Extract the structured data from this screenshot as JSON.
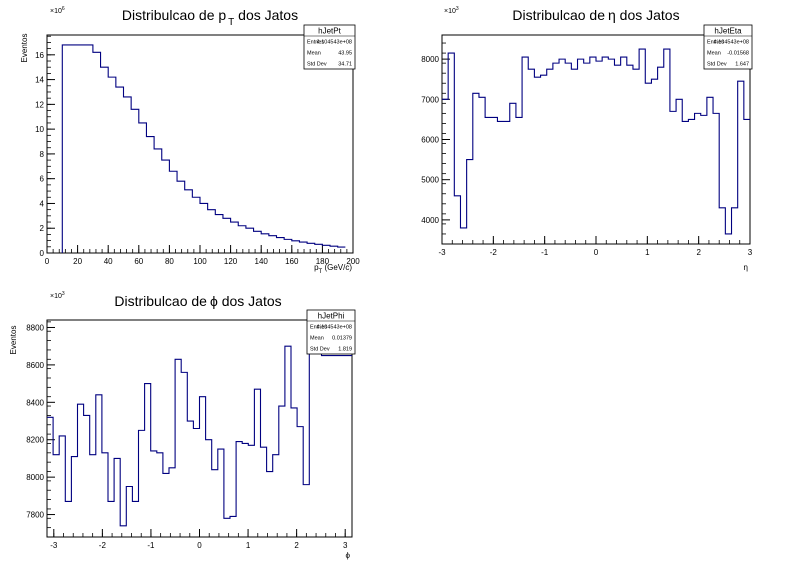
{
  "chart_data": [
    {
      "type": "histogram",
      "title_prefix": "Distribulcao de p",
      "title_sub": "T",
      "title_suffix": " dos Jatos",
      "xlabel_main": "p",
      "xlabel_sub": "T",
      "xlabel_suffix": " (GeV/c)",
      "ylabel": "Eventos",
      "multiplier": "×10",
      "multiplier_exp": "6",
      "xlim": [
        0,
        200
      ],
      "ylim": [
        0,
        17.6
      ],
      "xticks": [
        0,
        20,
        40,
        60,
        80,
        100,
        120,
        140,
        160,
        180,
        200
      ],
      "yticks": [
        0,
        2,
        4,
        6,
        8,
        10,
        12,
        14,
        16
      ],
      "bin_width": 5,
      "bin_start": 10,
      "values": [
        16.8,
        16.8,
        16.8,
        16.8,
        16.2,
        15.0,
        14.2,
        13.4,
        12.6,
        11.6,
        10.5,
        9.4,
        8.4,
        7.5,
        6.6,
        5.8,
        5.1,
        4.5,
        4.0,
        3.5,
        3.1,
        2.8,
        2.5,
        2.2,
        2.0,
        1.75,
        1.55,
        1.4,
        1.25,
        1.1,
        0.98,
        0.88,
        0.78,
        0.7,
        0.62,
        0.55,
        0.48
      ],
      "stats": {
        "name": "hJetPt",
        "rows": [
          [
            "Entries",
            "4.104543e+08"
          ],
          [
            "Mean",
            "43.95"
          ],
          [
            "Std Dev",
            "34.71"
          ]
        ]
      }
    },
    {
      "type": "histogram",
      "title_prefix": "Distribulcao de",
      "title_sub": "",
      "title_symbol": "η",
      "title_suffix": " dos Jatos",
      "xlabel_main": "η",
      "xlabel_sub": "",
      "xlabel_suffix": "",
      "ylabel": "",
      "multiplier": "×10",
      "multiplier_exp": "3",
      "xlim": [
        -3,
        3
      ],
      "ylim": [
        3400,
        8600
      ],
      "xticks": [
        -3,
        -2,
        -1,
        0,
        1,
        2,
        3
      ],
      "yticks": [
        4000,
        5000,
        6000,
        7000,
        8000
      ],
      "bin_width": 0.12,
      "bin_start": -3,
      "values": [
        7000,
        8150,
        4600,
        3800,
        5500,
        7150,
        7050,
        6550,
        6550,
        6450,
        6450,
        6900,
        6550,
        8050,
        7750,
        7550,
        7600,
        7750,
        7900,
        8000,
        7900,
        7750,
        8000,
        7900,
        8050,
        7950,
        8050,
        8000,
        7850,
        8050,
        7850,
        7750,
        8250,
        7400,
        7500,
        7800,
        8250,
        6700,
        7000,
        6450,
        6500,
        6650,
        6600,
        7050,
        6650,
        4300,
        3650,
        4300,
        7450,
        6500
      ],
      "stats": {
        "name": "hJetEta",
        "rows": [
          [
            "Entries",
            "4.104543e+08"
          ],
          [
            "Mean",
            "-0.01568"
          ],
          [
            "Std Dev",
            "1.647"
          ]
        ]
      }
    },
    {
      "type": "histogram",
      "title_prefix": "Distribulcao de",
      "title_sub": "",
      "title_symbol": "ϕ",
      "title_suffix": " dos Jatos",
      "xlabel_main": "ϕ",
      "xlabel_sub": "",
      "xlabel_suffix": "",
      "ylabel": "Eventos",
      "multiplier": "×10",
      "multiplier_exp": "3",
      "xlim": [
        -3.14,
        3.14
      ],
      "ylim": [
        7680,
        8840
      ],
      "xticks": [
        -3,
        -2,
        -1,
        0,
        1,
        2,
        3
      ],
      "yticks": [
        7800,
        8000,
        8200,
        8400,
        8600,
        8800
      ],
      "bin_width": 0.1256,
      "bin_start": -3.14,
      "values": [
        8320,
        8120,
        8220,
        7870,
        8110,
        8390,
        8330,
        8120,
        8440,
        8130,
        7870,
        8100,
        7740,
        7950,
        7870,
        8250,
        8500,
        8140,
        8130,
        8020,
        8050,
        8630,
        8560,
        8300,
        8260,
        8430,
        8200,
        8040,
        8150,
        7780,
        7790,
        8190,
        8180,
        8170,
        8470,
        8160,
        8030,
        8120,
        8380,
        8700,
        8370,
        8270,
        7960,
        8680,
        8710,
        8650,
        8650,
        8650,
        8650,
        8650
      ],
      "stats": {
        "name": "hJetPhi",
        "rows": [
          [
            "Entries",
            "4.104543e+08"
          ],
          [
            "Mean",
            "0.01379"
          ],
          [
            "Std Dev",
            "1.819"
          ]
        ]
      }
    }
  ]
}
